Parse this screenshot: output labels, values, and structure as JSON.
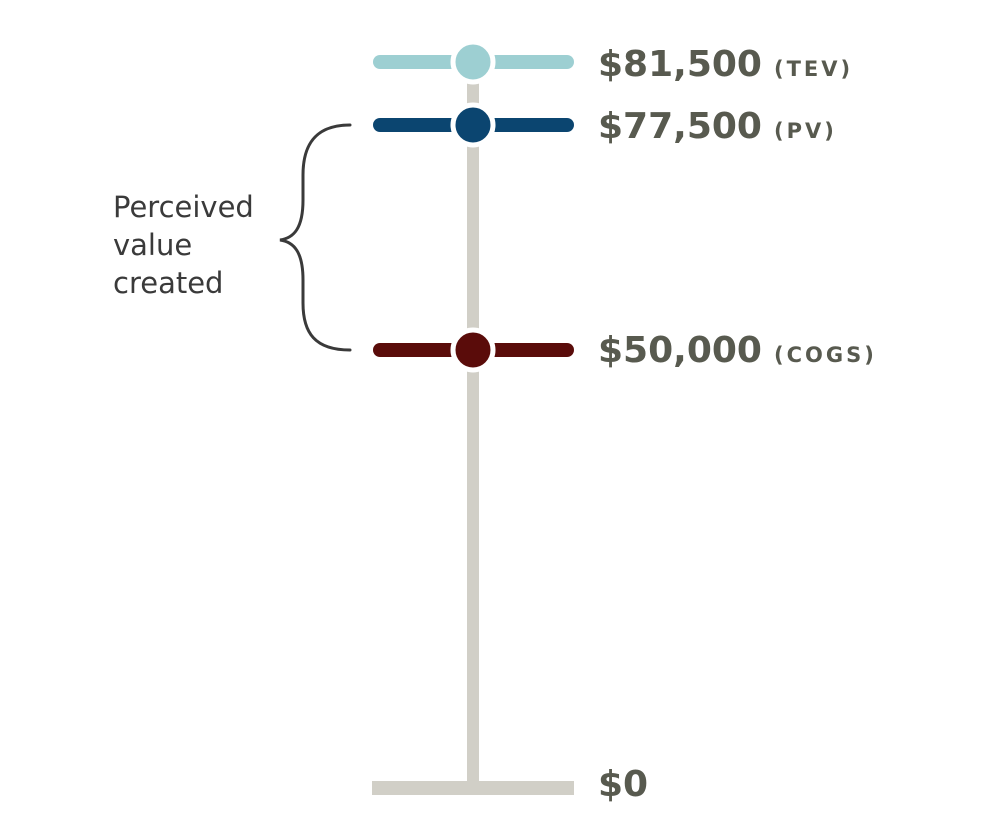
{
  "annotation": {
    "lines": [
      "Perceived",
      "value",
      "created"
    ]
  },
  "levels": [
    {
      "value": "$81,500",
      "code": "(TEV)",
      "color": "#9dcfd2"
    },
    {
      "value": "$77,500",
      "code": "(PV)",
      "color": "#0b4570"
    },
    {
      "value": "$50,000",
      "code": "(COGS)",
      "color": "#5a0c0a"
    },
    {
      "value": "$0",
      "code": ""
    }
  ],
  "colors": {
    "axis": "#d1cfc7",
    "brace": "#3a3a3a",
    "label": "#585a4f"
  }
}
